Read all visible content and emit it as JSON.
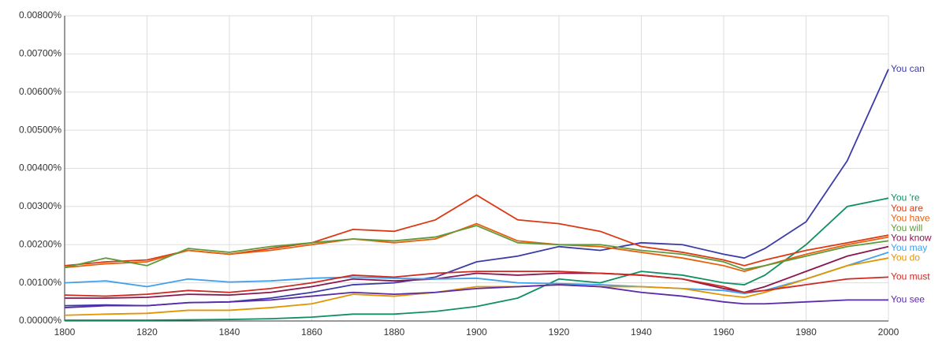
{
  "chart_data": {
    "type": "line",
    "x": [
      1800,
      1810,
      1820,
      1830,
      1840,
      1850,
      1860,
      1870,
      1880,
      1890,
      1900,
      1910,
      1920,
      1930,
      1940,
      1950,
      1960,
      1965,
      1970,
      1980,
      1990,
      2000
    ],
    "xlim": [
      1800,
      2000
    ],
    "xticks": [
      1800,
      1820,
      1840,
      1860,
      1880,
      1900,
      1920,
      1940,
      1960,
      1980,
      2000
    ],
    "ylim": [
      0,
      0.008
    ],
    "yticks": [
      {
        "value": 0,
        "label": "0.00000%"
      },
      {
        "value": 0.001,
        "label": "0.00100%"
      },
      {
        "value": 0.002,
        "label": "0.00200%"
      },
      {
        "value": 0.003,
        "label": "0.00300%"
      },
      {
        "value": 0.004,
        "label": "0.00400%"
      },
      {
        "value": 0.005,
        "label": "0.00500%"
      },
      {
        "value": 0.006,
        "label": "0.00600%"
      },
      {
        "value": 0.007,
        "label": "0.00700%"
      },
      {
        "value": 0.008,
        "label": "0.00800%"
      }
    ],
    "grid": true,
    "series": [
      {
        "name": "You can",
        "color": "#3b3ba8",
        "values": [
          0.0004,
          0.00042,
          0.0004,
          0.00048,
          0.0005,
          0.0006,
          0.00075,
          0.00095,
          0.001,
          0.00115,
          0.00155,
          0.0017,
          0.00195,
          0.00185,
          0.00205,
          0.002,
          0.00175,
          0.00165,
          0.0019,
          0.0026,
          0.0042,
          0.0066
        ]
      },
      {
        "name": "You 're",
        "color": "#109060",
        "values": [
          2e-05,
          2e-05,
          2e-05,
          3e-05,
          4e-05,
          6e-05,
          0.0001,
          0.00018,
          0.00018,
          0.00025,
          0.00038,
          0.0006,
          0.0011,
          0.001,
          0.0013,
          0.0012,
          0.001,
          0.00095,
          0.0012,
          0.002,
          0.003,
          0.00322
        ]
      },
      {
        "name": "You are",
        "color": "#dc3912",
        "values": [
          0.00145,
          0.00155,
          0.0016,
          0.00185,
          0.00175,
          0.0019,
          0.00205,
          0.0024,
          0.00235,
          0.00265,
          0.0033,
          0.00265,
          0.00255,
          0.00235,
          0.00195,
          0.0018,
          0.0016,
          0.00145,
          0.0016,
          0.00185,
          0.00205,
          0.00225
        ]
      },
      {
        "name": "You have",
        "color": "#e8600e",
        "values": [
          0.0014,
          0.0015,
          0.00155,
          0.00185,
          0.00175,
          0.00185,
          0.002,
          0.00215,
          0.00205,
          0.00215,
          0.00255,
          0.0021,
          0.002,
          0.00195,
          0.0018,
          0.00165,
          0.00145,
          0.0013,
          0.00145,
          0.00175,
          0.002,
          0.0022
        ]
      },
      {
        "name": "You will",
        "color": "#5f9a3a",
        "values": [
          0.0014,
          0.00165,
          0.00145,
          0.0019,
          0.0018,
          0.00195,
          0.00205,
          0.00215,
          0.0021,
          0.0022,
          0.0025,
          0.00205,
          0.002,
          0.002,
          0.00185,
          0.00175,
          0.00155,
          0.00135,
          0.00145,
          0.0017,
          0.00195,
          0.0021
        ]
      },
      {
        "name": "You know",
        "color": "#8a1650",
        "values": [
          0.0006,
          0.0006,
          0.00062,
          0.0007,
          0.00068,
          0.00075,
          0.0009,
          0.0011,
          0.00105,
          0.0011,
          0.00125,
          0.0012,
          0.00125,
          0.00125,
          0.0012,
          0.0011,
          0.00085,
          0.00075,
          0.0009,
          0.0013,
          0.0017,
          0.00195
        ]
      },
      {
        "name": "You may",
        "color": "#3fa0ee",
        "values": [
          0.001,
          0.00105,
          0.0009,
          0.0011,
          0.00102,
          0.00105,
          0.00112,
          0.00115,
          0.00112,
          0.0011,
          0.00112,
          0.001,
          0.00098,
          0.00095,
          0.0009,
          0.00085,
          0.0008,
          0.00072,
          0.0008,
          0.0011,
          0.00145,
          0.0018
        ]
      },
      {
        "name": "You do",
        "color": "#e39400",
        "values": [
          0.00015,
          0.00018,
          0.0002,
          0.00028,
          0.00028,
          0.00035,
          0.00045,
          0.0007,
          0.00065,
          0.00075,
          0.0009,
          0.0009,
          0.00095,
          0.0009,
          0.0009,
          0.00085,
          0.00068,
          0.00062,
          0.00075,
          0.0011,
          0.00145,
          0.00165
        ]
      },
      {
        "name": "You must",
        "color": "#cc2a22",
        "values": [
          0.00068,
          0.00065,
          0.0007,
          0.0008,
          0.00075,
          0.00085,
          0.001,
          0.0012,
          0.00115,
          0.00125,
          0.0013,
          0.0013,
          0.0013,
          0.00125,
          0.0012,
          0.0011,
          0.0009,
          0.00075,
          0.0008,
          0.00095,
          0.0011,
          0.00115
        ]
      },
      {
        "name": "You see",
        "color": "#5a2aa8",
        "values": [
          0.00035,
          0.0004,
          0.0004,
          0.00048,
          0.0005,
          0.00055,
          0.00065,
          0.00075,
          0.0007,
          0.00075,
          0.00085,
          0.0009,
          0.00095,
          0.0009,
          0.00075,
          0.00065,
          0.0005,
          0.00045,
          0.00045,
          0.0005,
          0.00055,
          0.00055
        ]
      }
    ]
  }
}
